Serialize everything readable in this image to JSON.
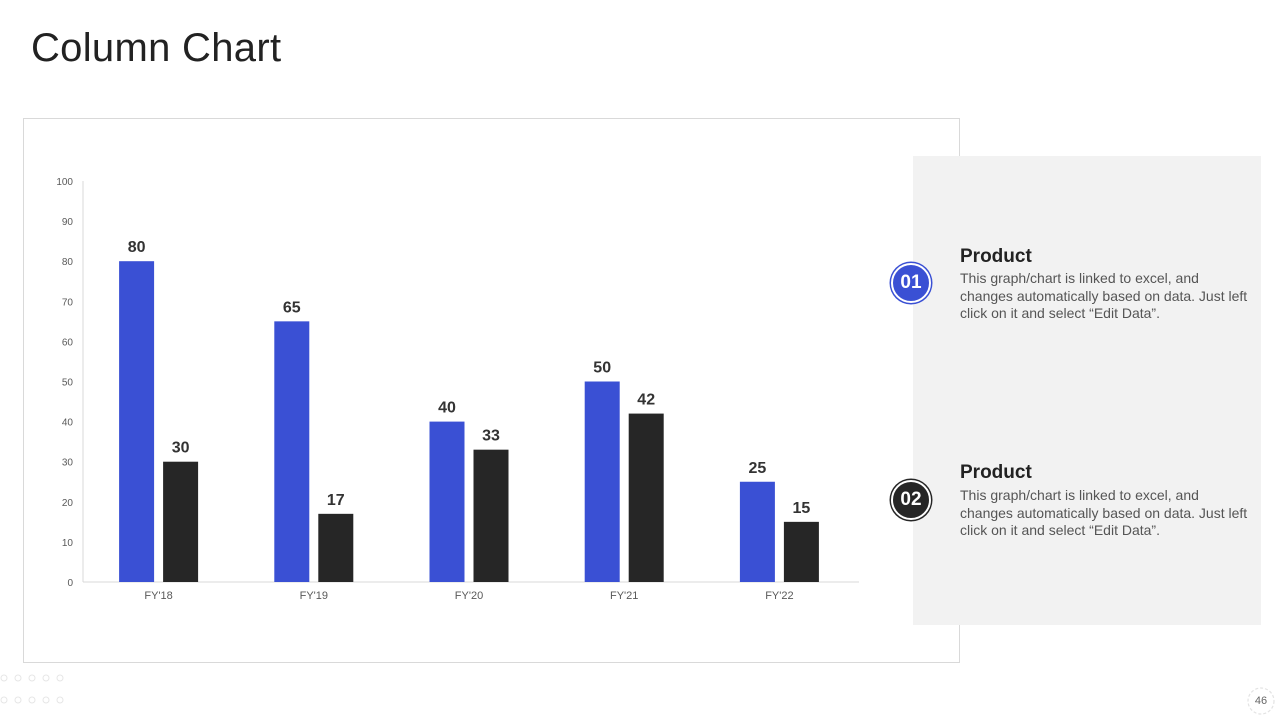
{
  "slide": {
    "title": "Column Chart",
    "page_number": "46"
  },
  "colors": {
    "series1": "#3a50d4",
    "series2": "#262626",
    "panel_bg": "#f2f2f2"
  },
  "chart_data": {
    "type": "bar",
    "categories": [
      "FY'18",
      "FY'19",
      "FY'20",
      "FY'21",
      "FY'22"
    ],
    "series": [
      {
        "values": [
          80,
          65,
          40,
          50,
          25
        ],
        "color": "#3a50d4"
      },
      {
        "values": [
          30,
          17,
          33,
          42,
          15
        ],
        "color": "#262626"
      }
    ],
    "ylim": [
      0,
      100
    ],
    "yticks": [
      0,
      10,
      20,
      30,
      40,
      50,
      60,
      70,
      80,
      90,
      100
    ],
    "grid": false,
    "data_labels": true
  },
  "legend_items": [
    {
      "number": "01",
      "title": "Product",
      "text": "This graph/chart is linked to excel, and changes automatically based on data. Just left click on it and select “Edit Data”.",
      "color": "#3a50d4"
    },
    {
      "number": "02",
      "title": "Product",
      "text": "This graph/chart is linked to excel, and changes automatically based on data. Just left click on it and select “Edit Data”.",
      "color": "#262626"
    }
  ]
}
